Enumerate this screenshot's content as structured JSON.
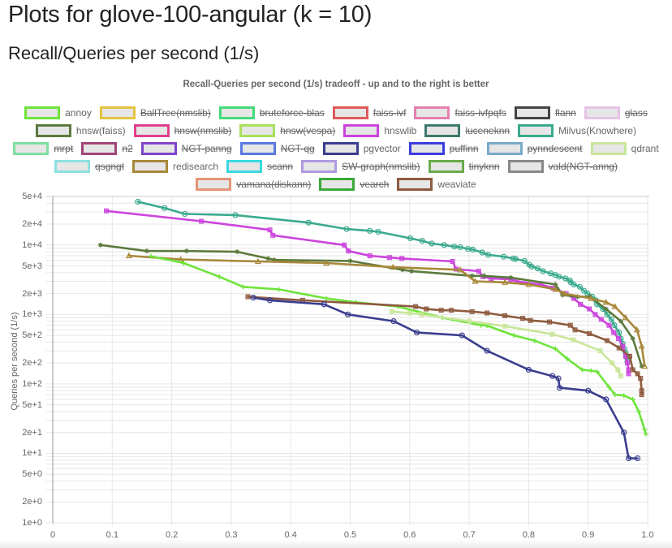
{
  "page": {
    "title": "Plots for glove-100-angular (k = 10)",
    "section_title": "Recall/Queries per second (1/s)"
  },
  "chart_data": {
    "type": "line",
    "title": "Recall-Queries per second (1/s) tradeoff - up and to the right is better",
    "xlabel": "",
    "ylabel": "Queries per second (1/s)",
    "xscale": "linear",
    "yscale": "log",
    "xlim": [
      0,
      1.0
    ],
    "ylim": [
      1,
      50000
    ],
    "grid": true,
    "legend_position": "top",
    "x_ticks": [
      "0",
      "0.1",
      "0.2",
      "0.3",
      "0.4",
      "0.5",
      "0.6",
      "0.7",
      "0.8",
      "0.9",
      "1.0"
    ],
    "y_ticks": [
      "5e+4",
      "2e+4",
      "1e+4",
      "5e+3",
      "2e+3",
      "1e+3",
      "5e+2",
      "2e+2",
      "1e+2",
      "5e+1",
      "2e+1",
      "1e+1",
      "5e+0",
      "2e+0",
      "1e+0"
    ],
    "legend_rows": [
      [
        {
          "name": "annoy",
          "color": "#6ee43b",
          "visible": true
        },
        {
          "name": "BallTree(nmslib)",
          "color": "#e4c440",
          "visible": false
        },
        {
          "name": "bruteforce-blas",
          "color": "#45d97b",
          "visible": false
        },
        {
          "name": "faiss-ivf",
          "color": "#e05a5a",
          "visible": false
        },
        {
          "name": "faiss-ivfpqfs",
          "color": "#e67fb0",
          "visible": false
        },
        {
          "name": "flann",
          "color": "#444444",
          "visible": false
        },
        {
          "name": "glass",
          "color": "#e6c3e6",
          "visible": false
        }
      ],
      [
        {
          "name": "hnsw(faiss)",
          "color": "#5c7a3e",
          "visible": true
        },
        {
          "name": "hnsw(nmslib)",
          "color": "#e0408a",
          "visible": false
        },
        {
          "name": "hnsw(vespa)",
          "color": "#a8e05a",
          "visible": false
        },
        {
          "name": "hnswlib",
          "color": "#cc44dd",
          "visible": true
        },
        {
          "name": "luceneknn",
          "color": "#3e7a6e",
          "visible": false
        },
        {
          "name": "Milvus(Knowhere)",
          "color": "#3aaa8e",
          "visible": true
        }
      ],
      [
        {
          "name": "mrpt",
          "color": "#7de0a0",
          "visible": false
        },
        {
          "name": "n2",
          "color": "#a04478",
          "visible": false
        },
        {
          "name": "NGT-panng",
          "color": "#8044cc",
          "visible": false
        },
        {
          "name": "NGT-qg",
          "color": "#5a7ae0",
          "visible": false
        },
        {
          "name": "pgvector",
          "color": "#3a3e8e",
          "visible": true
        },
        {
          "name": "puffinn",
          "color": "#3a3ee0",
          "visible": false
        },
        {
          "name": "pynndescent",
          "color": "#7aaac8",
          "visible": false
        },
        {
          "name": "qdrant",
          "color": "#c8e69a",
          "visible": true
        }
      ],
      [
        {
          "name": "qsgngt",
          "color": "#8ee0e0",
          "visible": false
        },
        {
          "name": "redisearch",
          "color": "#a8883a",
          "visible": true
        },
        {
          "name": "scann",
          "color": "#3ad8e0",
          "visible": false
        },
        {
          "name": "SW-graph(nmslib)",
          "color": "#b09ae0",
          "visible": false
        },
        {
          "name": "tinyknn",
          "color": "#6aaa4e",
          "visible": false
        },
        {
          "name": "vald(NGT-anng)",
          "color": "#888888",
          "visible": false
        }
      ],
      [
        {
          "name": "vamana(diskann)",
          "color": "#e69478",
          "visible": false
        },
        {
          "name": "vearch",
          "color": "#3aaa3a",
          "visible": false
        },
        {
          "name": "weaviate",
          "color": "#8e5a3e",
          "visible": true
        }
      ]
    ],
    "series": [
      {
        "name": "Milvus(Knowhere)",
        "color": "#3aaa8e",
        "marker": "circle",
        "x": [
          0.143,
          0.188,
          0.222,
          0.307,
          0.43,
          0.494,
          0.533,
          0.547,
          0.601,
          0.621,
          0.637,
          0.658,
          0.675,
          0.685,
          0.698,
          0.706,
          0.722,
          0.732,
          0.758,
          0.774,
          0.778,
          0.793,
          0.801,
          0.805,
          0.815,
          0.824,
          0.837,
          0.845,
          0.851,
          0.862,
          0.869,
          0.871,
          0.876,
          0.886,
          0.893,
          0.899,
          0.907,
          0.913,
          0.915,
          0.925,
          0.932,
          0.939,
          0.944,
          0.952,
          0.955,
          0.958,
          0.961,
          0.963,
          0.965,
          0.966
        ],
        "y": [
          42000,
          34000,
          28000,
          27000,
          21000,
          17000,
          16000,
          15500,
          12500,
          11500,
          10500,
          10000,
          9500,
          9300,
          8800,
          8600,
          7800,
          7200,
          6800,
          6400,
          6300,
          5900,
          5200,
          4900,
          4600,
          4200,
          3900,
          3700,
          3500,
          3300,
          3100,
          2900,
          2700,
          2500,
          2200,
          2000,
          1800,
          1600,
          1400,
          1200,
          1000,
          850,
          700,
          550,
          450,
          380,
          320,
          280,
          240,
          210
        ]
      },
      {
        "name": "hnswlib",
        "color": "#cc44dd",
        "marker": "square",
        "x": [
          0.09,
          0.25,
          0.365,
          0.37,
          0.49,
          0.497,
          0.533,
          0.566,
          0.587,
          0.672,
          0.678,
          0.716,
          0.723,
          0.737,
          0.77,
          0.78,
          0.82,
          0.841,
          0.863,
          0.876,
          0.887,
          0.902,
          0.912,
          0.922,
          0.935,
          0.943,
          0.951,
          0.958,
          0.963,
          0.966,
          0.968,
          0.968
        ],
        "y": [
          31000,
          22000,
          16500,
          13800,
          10000,
          8200,
          7000,
          6600,
          6400,
          5800,
          4500,
          4200,
          3500,
          3300,
          3200,
          3000,
          2700,
          2400,
          2000,
          1700,
          1400,
          1200,
          1000,
          850,
          700,
          550,
          450,
          350,
          250,
          200,
          160,
          140
        ]
      },
      {
        "name": "hnsw(faiss)",
        "color": "#5c7a3e",
        "marker": "star",
        "x": [
          0.08,
          0.158,
          0.225,
          0.31,
          0.362,
          0.372,
          0.5,
          0.588,
          0.603,
          0.705,
          0.725,
          0.77,
          0.845,
          0.857,
          0.882,
          0.903,
          0.93,
          0.955,
          0.975,
          0.99
        ],
        "y": [
          10000,
          8200,
          8200,
          8000,
          6400,
          6100,
          5900,
          4400,
          4200,
          3600,
          3600,
          3400,
          2700,
          1900,
          1800,
          1800,
          1200,
          800,
          450,
          180
        ]
      },
      {
        "name": "redisearch",
        "color": "#a8883a",
        "marker": "triangle",
        "x": [
          0.128,
          0.215,
          0.345,
          0.46,
          0.572,
          0.685,
          0.71,
          0.76,
          0.8,
          0.845,
          0.86,
          0.905,
          0.93,
          0.945,
          0.963,
          0.982,
          0.99,
          0.995
        ],
        "y": [
          7000,
          6200,
          5800,
          5500,
          4800,
          4400,
          3000,
          2900,
          2700,
          2300,
          2000,
          1700,
          1500,
          1300,
          900,
          600,
          350,
          180
        ]
      },
      {
        "name": "annoy",
        "color": "#6ee43b",
        "marker": "plus",
        "x": [
          0.165,
          0.22,
          0.28,
          0.32,
          0.38,
          0.46,
          0.51,
          0.58,
          0.655,
          0.72,
          0.73,
          0.775,
          0.81,
          0.845,
          0.865,
          0.89,
          0.905,
          0.915,
          0.935,
          0.945,
          0.96,
          0.975,
          0.985,
          0.995,
          0.997
        ],
        "y": [
          6900,
          5500,
          3500,
          2500,
          2300,
          1700,
          1500,
          1300,
          900,
          700,
          690,
          500,
          420,
          320,
          230,
          160,
          155,
          150,
          90,
          70,
          68,
          60,
          40,
          22,
          19
        ]
      },
      {
        "name": "weaviate",
        "color": "#8e5a3e",
        "marker": "square",
        "x": [
          0.328,
          0.42,
          0.61,
          0.628,
          0.653,
          0.67,
          0.705,
          0.73,
          0.76,
          0.79,
          0.803,
          0.835,
          0.87,
          0.878,
          0.902,
          0.932,
          0.952,
          0.97,
          0.975,
          0.983,
          0.988,
          0.99,
          0.99
        ],
        "y": [
          1800,
          1600,
          1300,
          1200,
          1150,
          1150,
          1100,
          1050,
          960,
          880,
          820,
          780,
          700,
          600,
          530,
          420,
          330,
          250,
          160,
          140,
          120,
          80,
          70
        ]
      },
      {
        "name": "qdrant",
        "color": "#c8e69a",
        "marker": "square",
        "x": [
          0.57,
          0.6,
          0.62,
          0.7,
          0.76,
          0.84,
          0.875,
          0.92,
          0.94,
          0.95,
          0.955
        ],
        "y": [
          1100,
          1050,
          1000,
          800,
          680,
          520,
          430,
          300,
          200,
          160,
          130
        ]
      },
      {
        "name": "pgvector",
        "color": "#3a3e8e",
        "marker": "circle",
        "x": [
          0.337,
          0.365,
          0.456,
          0.496,
          0.573,
          0.612,
          0.688,
          0.73,
          0.8,
          0.84,
          0.85,
          0.852,
          0.9,
          0.93,
          0.96,
          0.968,
          0.983
        ],
        "y": [
          1750,
          1600,
          1400,
          1000,
          800,
          550,
          500,
          300,
          160,
          130,
          120,
          88,
          80,
          60,
          20,
          8.5,
          8.5
        ]
      }
    ]
  }
}
